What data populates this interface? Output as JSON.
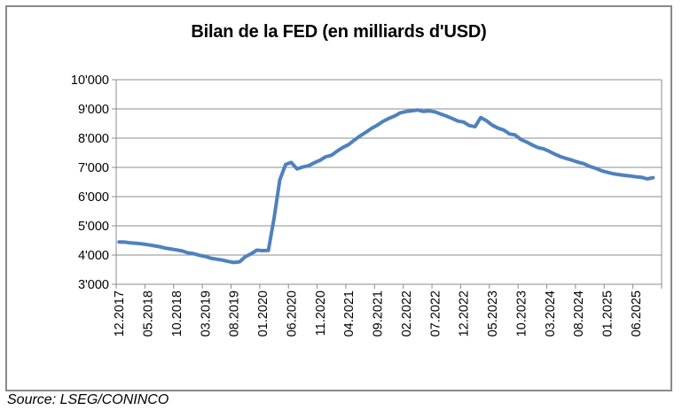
{
  "chart_data": {
    "type": "line",
    "title": "Bilan de la FED (en milliards d'USD)",
    "source": "Source: LSEG/CONINCO",
    "xlabel": "",
    "ylabel": "",
    "ylim": [
      3000,
      10000
    ],
    "y_tick_step": 1000,
    "y_tick_labels": [
      "3'000",
      "4'000",
      "5'000",
      "6'000",
      "7'000",
      "8'000",
      "9'000",
      "10'000"
    ],
    "x_tick_labels": [
      "12.2017",
      "05.2018",
      "10.2018",
      "03.2019",
      "08.2019",
      "01.2020",
      "06.2020",
      "11.2020",
      "04.2021",
      "09.2021",
      "02.2022",
      "07.2022",
      "12.2022",
      "05.2023",
      "10.2023",
      "03.2024",
      "08.2024",
      "01.2025",
      "06.2025"
    ],
    "x_tick_every_n_points": 5,
    "grid": "horizontal",
    "legend": "none",
    "line_color": "#4F81BD",
    "axis_color": "#8C8C8C",
    "frame_color": "#8A8A8A",
    "series": [
      {
        "name": "Bilan de la FED",
        "start": "12.2017",
        "frequency": "monthly",
        "values": [
          4449,
          4441,
          4414,
          4399,
          4382,
          4356,
          4321,
          4287,
          4238,
          4209,
          4175,
          4138,
          4076,
          4047,
          3990,
          3956,
          3892,
          3859,
          3826,
          3781,
          3746,
          3769,
          3946,
          4043,
          4166,
          4151,
          4159,
          5254,
          6573,
          7097,
          7169,
          6949,
          7011,
          7056,
          7157,
          7243,
          7363,
          7415,
          7557,
          7685,
          7783,
          7935,
          8078,
          8202,
          8336,
          8448,
          8575,
          8676,
          8757,
          8867,
          8911,
          8937,
          8965,
          8915,
          8934,
          8899,
          8826,
          8759,
          8675,
          8585,
          8551,
          8434,
          8390,
          8706,
          8593,
          8446,
          8341,
          8275,
          8146,
          8108,
          7951,
          7866,
          7764,
          7677,
          7629,
          7542,
          7443,
          7361,
          7296,
          7240,
          7175,
          7124,
          7029,
          6970,
          6889,
          6834,
          6784,
          6756,
          6727,
          6705,
          6679,
          6662,
          6606,
          6645
        ]
      }
    ]
  }
}
